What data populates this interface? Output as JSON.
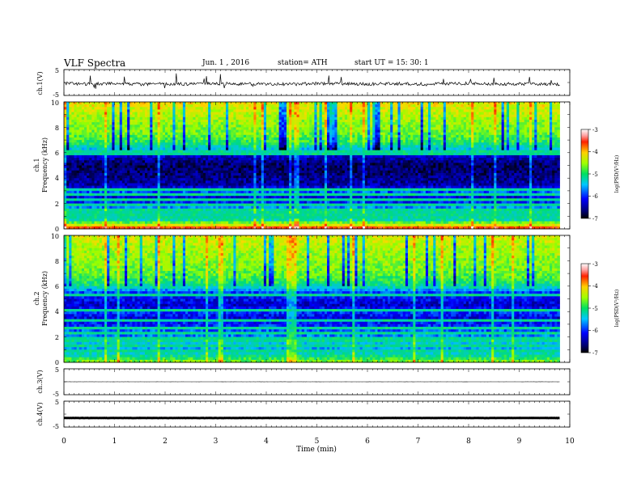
{
  "header": {
    "title": "VLF  Spectra",
    "date": "Jun.  1  , 2016",
    "station": "station= ATH",
    "start": "start  UT  =    15: 30: 1"
  },
  "chart_data": [
    {
      "type": "line",
      "panel": "ch1-waveform",
      "ylabel": "ch.1(V)",
      "ylim": [
        -5,
        5
      ],
      "y_ticks": [
        "5",
        "-5"
      ],
      "x": [
        0,
        0.5,
        1,
        1.5,
        2,
        2.5,
        3,
        3.5,
        4,
        4.5,
        5,
        5.5,
        6,
        6.5,
        7,
        7.5,
        8,
        8.5,
        9,
        9.5,
        9.8
      ],
      "y": [
        -0.3,
        -0.6,
        -0.4,
        -0.7,
        -0.5,
        -0.6,
        -0.4,
        -0.6,
        -0.5,
        -0.7,
        -0.4,
        -0.5,
        -0.6,
        -0.4,
        -0.6,
        -0.5,
        -0.4,
        -0.6,
        -0.5,
        -0.6,
        -0.7
      ],
      "color": "#000000"
    },
    {
      "type": "heatmap",
      "panel": "ch1-spectrogram",
      "ylabel_channel": "ch.1",
      "ylabel": "Frequency  (kHz)",
      "ylim": [
        0,
        10
      ],
      "y_ticks": [
        "0",
        "2",
        "4",
        "6",
        "8",
        "10"
      ],
      "xlim": [
        0,
        9.8
      ],
      "colorbar": {
        "label": "log(PSD(V²/Hz)",
        "range": [
          -7,
          -3
        ],
        "ticks": [
          "-3",
          "-4",
          "-5",
          "-6",
          "-7"
        ]
      },
      "freq_profile_log_psd": [
        [
          0,
          -3.5
        ],
        [
          0.3,
          -4.5
        ],
        [
          0.6,
          -5.2
        ],
        [
          1,
          -6.2
        ],
        [
          1.4,
          -5.6
        ],
        [
          1.8,
          -6.1
        ],
        [
          2.2,
          -6.4
        ],
        [
          2.6,
          -6.5
        ],
        [
          3,
          -6.0
        ],
        [
          3.4,
          -6.7
        ],
        [
          4,
          -6.8
        ],
        [
          4.6,
          -6.9
        ],
        [
          5.2,
          -6.9
        ],
        [
          5.8,
          -6.5
        ],
        [
          6.2,
          -5.8
        ],
        [
          6.8,
          -5.2
        ],
        [
          7.6,
          -4.9
        ],
        [
          8.4,
          -4.8
        ],
        [
          9.2,
          -4.6
        ],
        [
          10,
          -4.4
        ]
      ],
      "bright_lines_khz": [
        0.15,
        0.3,
        0.5,
        0.8,
        1.1,
        1.4,
        1.6,
        1.9,
        2.2,
        2.8,
        3.1,
        6.0
      ]
    },
    {
      "type": "heatmap",
      "panel": "ch2-spectrogram",
      "ylabel_channel": "ch.2",
      "ylabel": "Frequency  (kHz)",
      "ylim": [
        0,
        10
      ],
      "y_ticks": [
        "0",
        "2",
        "4",
        "6",
        "8",
        "10"
      ],
      "xlim": [
        0,
        9.8
      ],
      "colorbar": {
        "label": "log(PSD(V²/Hz)",
        "range": [
          -7,
          -3
        ],
        "ticks": [
          "-3",
          "-4",
          "-5",
          "-6",
          "-7"
        ]
      },
      "freq_profile_log_psd": [
        [
          0,
          -4.8
        ],
        [
          0.4,
          -5.3
        ],
        [
          0.8,
          -5.6
        ],
        [
          1.2,
          -5.9
        ],
        [
          1.6,
          -5.6
        ],
        [
          2,
          -6.0
        ],
        [
          2.5,
          -6.1
        ],
        [
          3,
          -6.3
        ],
        [
          3.5,
          -6.5
        ],
        [
          4,
          -6.2
        ],
        [
          4.5,
          -6.6
        ],
        [
          5,
          -6.4
        ],
        [
          5.5,
          -6.2
        ],
        [
          6,
          -5.4
        ],
        [
          6.6,
          -5.1
        ],
        [
          7.4,
          -4.9
        ],
        [
          8.2,
          -4.8
        ],
        [
          9,
          -4.7
        ],
        [
          10,
          -4.5
        ]
      ],
      "bright_lines_khz": [
        0.3,
        0.8,
        1.3,
        1.8,
        2.3,
        2.7,
        3.3,
        4.2,
        4.8,
        5.3
      ]
    },
    {
      "type": "line",
      "panel": "ch3-waveform",
      "ylabel": "ch.3(V)",
      "ylim": [
        -5,
        5
      ],
      "y_ticks": [
        "5",
        "-5"
      ],
      "x": [
        0,
        9.8
      ],
      "y": [
        0,
        0
      ],
      "color": "#000000"
    },
    {
      "type": "line",
      "panel": "ch4-waveform",
      "ylabel": "ch.4(V)",
      "ylim": [
        -5,
        5
      ],
      "y_ticks": [
        "5",
        "-5"
      ],
      "x": [
        0,
        9.8
      ],
      "y": [
        -1.5,
        -1.5
      ],
      "color": "#000000"
    }
  ],
  "x_axis": {
    "label": "Time  (min)",
    "range": [
      0,
      10
    ],
    "ticks": [
      "0",
      "1",
      "2",
      "3",
      "4",
      "5",
      "6",
      "7",
      "8",
      "9",
      "10"
    ]
  }
}
